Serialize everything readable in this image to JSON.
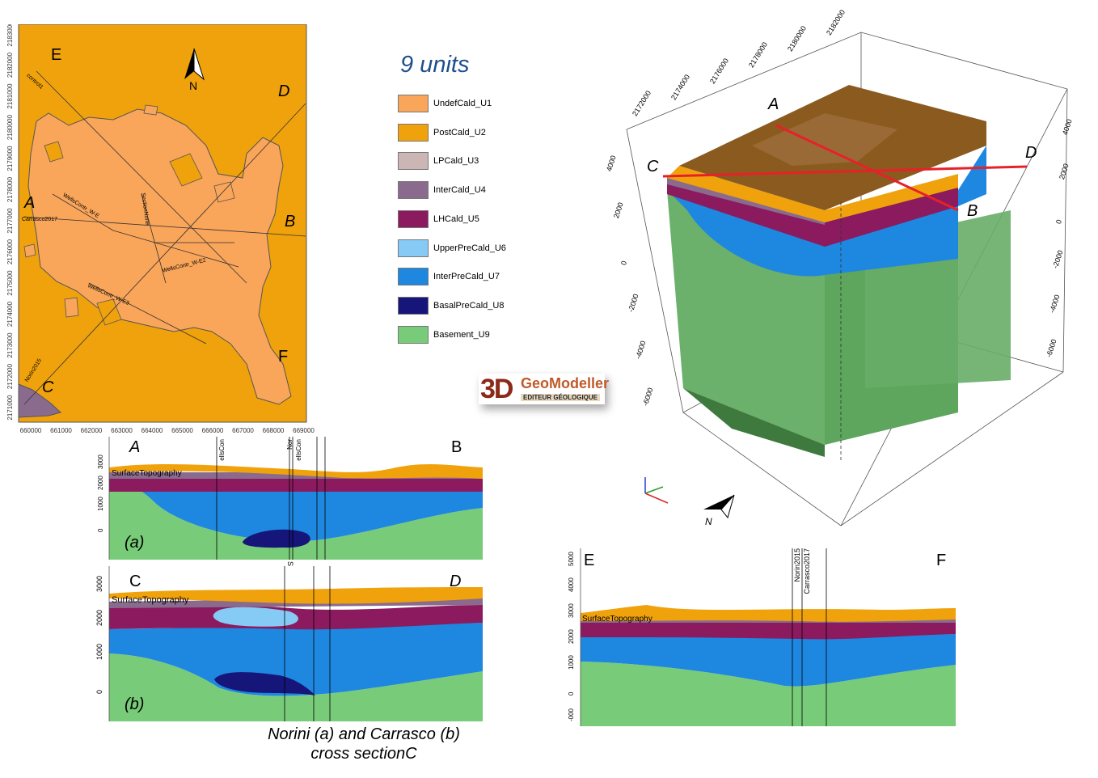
{
  "legend": {
    "title": "9 units",
    "units": [
      {
        "name": "UndefCald_U1",
        "color": "#f9a55a"
      },
      {
        "name": "PostCald_U2",
        "color": "#f0a20c"
      },
      {
        "name": "LPCald_U3",
        "color": "#cbb5b5"
      },
      {
        "name": "InterCald_U4",
        "color": "#8a6b8e"
      },
      {
        "name": "LHCald_U5",
        "color": "#8b1a5e"
      },
      {
        "name": "UpperPreCald_U6",
        "color": "#86cbf6"
      },
      {
        "name": "InterPreCald_U7",
        "color": "#1e87e0"
      },
      {
        "name": "BasalPreCald_U8",
        "color": "#15157a"
      },
      {
        "name": "Basement_U9",
        "color": "#78cb78"
      }
    ]
  },
  "map": {
    "north_label": "N",
    "section_letters": {
      "A": "A",
      "B": "B",
      "C": "C",
      "D": "D",
      "E": "E",
      "F": "F"
    },
    "line_labels": [
      "control1",
      "Carrasco2017",
      "WellsContr_W-E",
      "SectionNorte",
      "WellsContr_W-E2",
      "WellsContr_W-E3",
      "Norin2015"
    ],
    "x_ticks": [
      "660000",
      "661000",
      "662000",
      "663000",
      "664000",
      "665000",
      "666000",
      "667000",
      "668000",
      "669000"
    ],
    "y_ticks": [
      "2183000",
      "2182000",
      "2181000",
      "2180000",
      "2179000",
      "2178000",
      "2177000",
      "2176000",
      "2175000",
      "2174000",
      "2173000",
      "2172000",
      "2171000"
    ]
  },
  "logo": {
    "prefix": "3D",
    "name": "GeoModeller",
    "subtitle": "EDITEUR GÉOLOGIQUE"
  },
  "model3d": {
    "letters": {
      "A": "A",
      "B": "B",
      "C": "C",
      "D": "D"
    },
    "north_label": "N",
    "top_ticks": [
      "2172000",
      "2174000",
      "2176000",
      "2178000",
      "2180000",
      "2182000"
    ],
    "z_ticks_left": [
      "4000",
      "2000",
      "0",
      "-2000",
      "-4000",
      "-6000"
    ],
    "z_ticks_right": [
      "4000",
      "2000",
      "0",
      "-2000",
      "-4000",
      "-6000"
    ]
  },
  "section_ab": {
    "left_letter": "A",
    "right_letter": "B",
    "tag": "(a)",
    "surface_label": "SurfaceTopography",
    "y_ticks": [
      "3000",
      "2000",
      "1000",
      "0"
    ],
    "well_labels": [
      "ellsCon",
      "ellsCon",
      "Nor"
    ]
  },
  "section_cd": {
    "left_letter": "C",
    "right_letter": "D",
    "tag": "(b)",
    "surface_label": "SurfaceTopography",
    "y_ticks": [
      "3000",
      "2000",
      "1000",
      "0"
    ],
    "well_labels": [
      "S"
    ]
  },
  "section_ef": {
    "left_letter": "E",
    "right_letter": "F",
    "surface_label": "SurfaceTopography",
    "y_ticks": [
      "5000",
      "4000",
      "3000",
      "2000",
      "1000",
      "0",
      "-000"
    ],
    "well_labels": [
      "Norin2015",
      "Carrasco2017"
    ]
  },
  "caption": {
    "line1": "Norini (a) and Carrasco (b)",
    "line2": "cross sectionC"
  }
}
